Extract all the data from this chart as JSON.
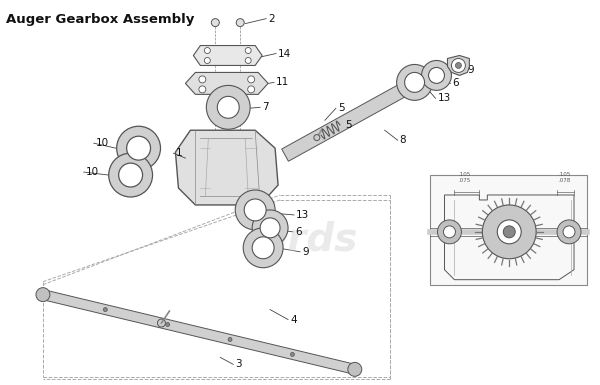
{
  "title": "Auger Gearbox Assembly",
  "bg_color": "#ffffff",
  "lc": "#555555",
  "tc": "#111111",
  "watermark": "ards",
  "figsize": [
    6.0,
    3.85
  ],
  "dpi": 100
}
